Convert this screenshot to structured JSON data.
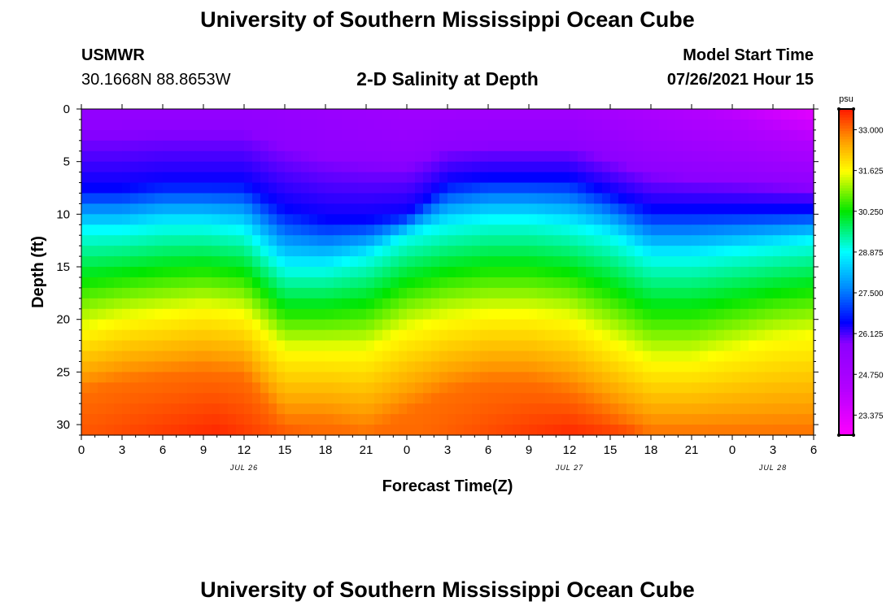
{
  "header": {
    "title": "University of Southern Mississippi Ocean Cube",
    "station": "USMWR",
    "coordinates": "30.1668N  88.8653W",
    "subtitle": "2-D Salinity at Depth",
    "model_label": "Model Start Time",
    "model_time": "07/26/2021 Hour 15"
  },
  "footer": {
    "title": "University of Southern Mississippi Ocean Cube"
  },
  "chart_data": {
    "type": "heatmap",
    "title": "2-D Salinity at Depth",
    "xlabel": "Forecast Time(Z)",
    "ylabel": "Depth (ft)",
    "x_range_hours": [
      0,
      54
    ],
    "ylim": [
      0,
      31
    ],
    "y_inverted": true,
    "x_ticks": [
      {
        "hour": 0,
        "label": "0"
      },
      {
        "hour": 3,
        "label": "3"
      },
      {
        "hour": 6,
        "label": "6"
      },
      {
        "hour": 9,
        "label": "9"
      },
      {
        "hour": 12,
        "label": "12"
      },
      {
        "hour": 15,
        "label": "15"
      },
      {
        "hour": 18,
        "label": "18"
      },
      {
        "hour": 21,
        "label": "21"
      },
      {
        "hour": 24,
        "label": "0"
      },
      {
        "hour": 27,
        "label": "3"
      },
      {
        "hour": 30,
        "label": "6"
      },
      {
        "hour": 33,
        "label": "9"
      },
      {
        "hour": 36,
        "label": "12"
      },
      {
        "hour": 39,
        "label": "15"
      },
      {
        "hour": 42,
        "label": "18"
      },
      {
        "hour": 45,
        "label": "21"
      },
      {
        "hour": 48,
        "label": "0"
      },
      {
        "hour": 51,
        "label": "3"
      },
      {
        "hour": 54,
        "label": "6"
      }
    ],
    "y_ticks": [
      0,
      5,
      10,
      15,
      20,
      25,
      30
    ],
    "date_labels": [
      {
        "hour": 12,
        "label": "JUL 26"
      },
      {
        "hour": 36,
        "label": "JUL 27"
      },
      {
        "hour": 51,
        "label": "JUL 28"
      }
    ],
    "colorbar": {
      "unit": "psu",
      "min": 22.7,
      "max": 33.7,
      "tick_values": [
        33.0,
        31.625,
        30.25,
        28.875,
        27.5,
        26.125,
        24.75,
        23.375
      ],
      "tick_labels": [
        "33.000",
        "31.625",
        "30.250",
        "28.875",
        "27.500",
        "26.125",
        "24.750",
        "23.375"
      ]
    },
    "isohaline_depths_ft": {
      "hours": [
        0,
        3,
        6,
        9,
        12,
        15,
        18,
        21,
        24,
        27,
        30,
        33,
        36,
        39,
        42,
        45,
        48,
        51,
        54
      ],
      "salinity_26_5": [
        7.5,
        7.5,
        7.0,
        7.0,
        7.0,
        9.5,
        10.5,
        10.5,
        10.0,
        7.0,
        6.5,
        6.5,
        6.5,
        8.0,
        9.5,
        9.5,
        9.5,
        9.5,
        9.5
      ],
      "salinity_28_9": [
        11.5,
        11.5,
        11.0,
        11.0,
        11.5,
        15.0,
        15.0,
        14.0,
        12.0,
        11.0,
        10.5,
        10.5,
        11.0,
        12.0,
        14.0,
        14.0,
        13.5,
        13.0,
        12.5
      ],
      "salinity_31_6": [
        21.0,
        20.0,
        19.5,
        19.0,
        19.5,
        23.0,
        23.0,
        23.0,
        21.0,
        20.0,
        19.5,
        19.5,
        20.0,
        22.0,
        24.0,
        24.0,
        23.0,
        22.0,
        21.5
      ],
      "salinity_33_0": [
        27.0,
        26.0,
        25.5,
        25.0,
        25.5,
        30.0,
        30.0,
        31.0,
        29.0,
        27.0,
        26.0,
        26.0,
        27.0,
        29.0,
        31.0,
        31.0,
        31.0,
        31.0,
        31.0
      ]
    },
    "surface_salinity": {
      "hours": [
        0,
        12,
        24,
        36,
        48,
        54
      ],
      "values": [
        25.5,
        25.5,
        25.0,
        25.0,
        24.0,
        23.2
      ]
    },
    "bottom_salinity": {
      "hours": [
        0,
        10,
        18,
        24,
        36,
        48,
        54
      ],
      "values": [
        33.2,
        33.6,
        33.0,
        33.0,
        33.6,
        33.0,
        33.1
      ]
    }
  }
}
